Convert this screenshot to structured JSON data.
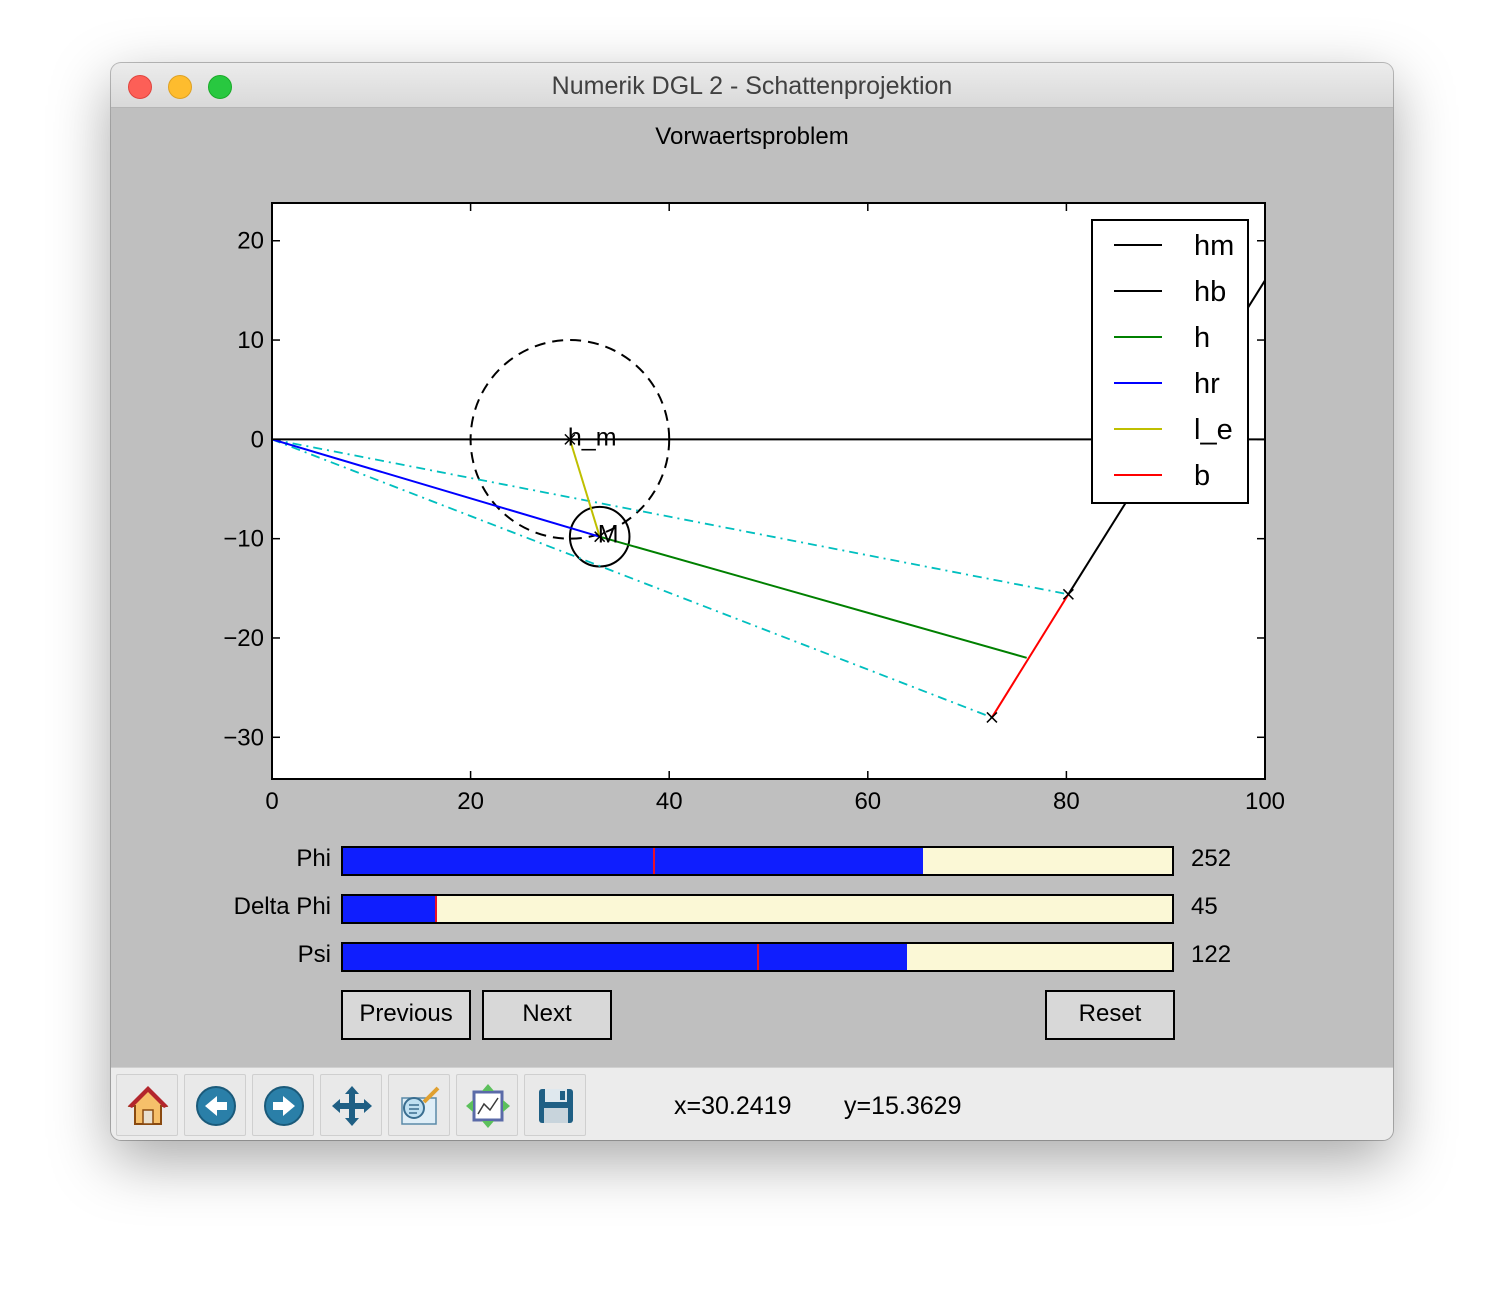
{
  "window": {
    "title": "Numerik DGL 2 - Schattenprojektion"
  },
  "figure": {
    "title": "Vorwaertsproblem"
  },
  "chart_data": {
    "type": "line",
    "xlim": [
      0,
      100
    ],
    "ylim": [
      -34.2,
      23.8
    ],
    "xticks": [
      0,
      20,
      40,
      60,
      80,
      100
    ],
    "xtick_labels": [
      "0",
      "20",
      "40",
      "60",
      "80",
      "100"
    ],
    "yticks": [
      20,
      10,
      0,
      -10,
      -20,
      -30
    ],
    "ytick_labels": [
      "20",
      "10",
      "0",
      "−10",
      "−20",
      "−30"
    ],
    "legend_position": "upper right",
    "series": [
      {
        "name": "hm",
        "color": "#000000",
        "x": [
          0,
          100
        ],
        "y": [
          0,
          0
        ]
      },
      {
        "name": "hb",
        "color": "#000000",
        "x": [
          80.2,
          100
        ],
        "y": [
          -15.6,
          16
        ]
      },
      {
        "name": "h",
        "color": "#008000",
        "x": [
          33,
          76
        ],
        "y": [
          -9.8,
          -22
        ]
      },
      {
        "name": "hr",
        "color": "#0000ff",
        "x": [
          0,
          33
        ],
        "y": [
          0,
          -9.8
        ]
      },
      {
        "name": "l_e",
        "color": "#bfbf00",
        "x": [
          30,
          33
        ],
        "y": [
          0,
          -9.8
        ]
      },
      {
        "name": "b",
        "color": "#ff0000",
        "x": [
          72.5,
          80.2
        ],
        "y": [
          -28,
          -15.6
        ]
      }
    ],
    "guides": [
      {
        "style": "dashdot",
        "color": "#00bfbf",
        "x": [
          0,
          80.2
        ],
        "y": [
          0,
          -15.6
        ]
      },
      {
        "style": "dashdot",
        "color": "#00bfbf",
        "x": [
          0,
          72.5
        ],
        "y": [
          0,
          -28
        ]
      }
    ],
    "circles": [
      {
        "style": "dashed",
        "cx": 30,
        "cy": 0,
        "r": 10
      },
      {
        "style": "solid",
        "cx": 33,
        "cy": -9.8,
        "r": 3
      }
    ],
    "markers": [
      {
        "x": 30,
        "y": 0
      },
      {
        "x": 33,
        "y": -9.8
      },
      {
        "x": 80.2,
        "y": -15.6
      },
      {
        "x": 72.5,
        "y": -28
      }
    ],
    "annotations": [
      {
        "text": "h_m",
        "x": 30,
        "y": 0
      },
      {
        "text": "M",
        "x": 33,
        "y": -9.8
      }
    ]
  },
  "sliders": [
    {
      "label": "Phi",
      "value": "252",
      "fraction": 0.7,
      "init_fraction": 0.375
    },
    {
      "label": "Delta Phi",
      "value": "45",
      "fraction": 0.112,
      "init_fraction": 0.112
    },
    {
      "label": "Psi",
      "value": "122",
      "fraction": 0.68,
      "init_fraction": 0.5
    }
  ],
  "buttons": {
    "previous": "Previous",
    "next": "Next",
    "reset": "Reset"
  },
  "toolbar": {
    "icons": [
      "home-icon",
      "back-arrow-icon",
      "forward-arrow-icon",
      "pan-icon",
      "zoom-icon",
      "subplots-icon",
      "save-icon"
    ],
    "x_readout": "x=30.2419",
    "y_readout": "y=15.3629"
  }
}
